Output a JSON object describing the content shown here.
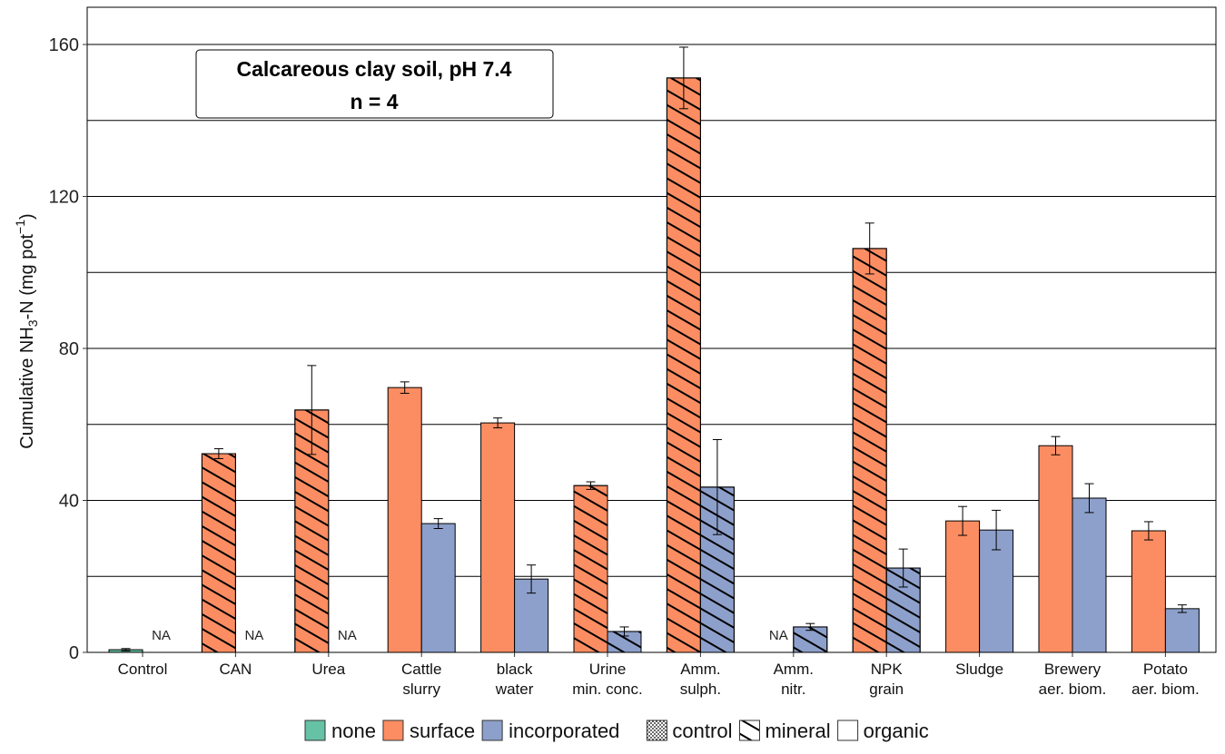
{
  "chart_data": {
    "type": "bar",
    "title_box": [
      "Calcareous clay soil, pH 7.4",
      "n = 4"
    ],
    "ylabel": "Cumulative NH3-N (mg pot-1)",
    "ylabel_parts": {
      "pre": "Cumulative NH",
      "sub": "3",
      "mid": "-N (mg pot",
      "sup": "−1",
      "post": ")"
    },
    "ylim": [
      0,
      169.8
    ],
    "yticks": [
      0,
      40,
      80,
      120,
      160
    ],
    "gridlines": [
      20,
      40,
      60,
      80,
      100,
      120,
      140,
      160
    ],
    "categories": [
      [
        "Control"
      ],
      [
        "CAN"
      ],
      [
        "Urea"
      ],
      [
        "Cattle",
        "slurry"
      ],
      [
        "black",
        "water"
      ],
      [
        "Urine",
        "min. conc."
      ],
      [
        "Amm.",
        "sulph."
      ],
      [
        "Amm.",
        "nitr."
      ],
      [
        "NPK",
        "grain"
      ],
      [
        "Sludge"
      ],
      [
        "Brewery",
        "aer. biom."
      ],
      [
        "Potato",
        "aer. biom."
      ]
    ],
    "fertilizer_type": [
      "control",
      "mineral",
      "mineral",
      "organic",
      "organic",
      "mineral",
      "mineral",
      "mineral",
      "mineral",
      "organic",
      "organic",
      "organic"
    ],
    "na_label": "NA",
    "series": [
      {
        "name": "surface",
        "color": "#FC8D62",
        "values": [
          0.7,
          52.3,
          63.8,
          69.7,
          60.4,
          43.9,
          151.2,
          null,
          106.3,
          34.6,
          54.4,
          32.0
        ],
        "errors": [
          0.3,
          1.3,
          11.7,
          1.5,
          1.3,
          1.0,
          8.1,
          null,
          6.7,
          3.8,
          2.4,
          2.4
        ]
      },
      {
        "name": "incorporated",
        "color": "#8DA0CB",
        "values": [
          null,
          null,
          null,
          33.9,
          19.3,
          5.5,
          43.5,
          6.7,
          22.2,
          32.2,
          40.6,
          11.5
        ],
        "errors": [
          null,
          null,
          null,
          1.3,
          3.7,
          1.2,
          12.5,
          0.9,
          5.0,
          5.2,
          3.8,
          1.0
        ]
      }
    ],
    "none_color": "#66C2A5",
    "legend_application": [
      {
        "label": "none",
        "color": "#66C2A5"
      },
      {
        "label": "surface",
        "color": "#FC8D62"
      },
      {
        "label": "incorporated",
        "color": "#8DA0CB"
      }
    ],
    "legend_type": [
      {
        "label": "control",
        "pattern": "dots"
      },
      {
        "label": "mineral",
        "pattern": "hatch"
      },
      {
        "label": "organic",
        "pattern": "none"
      }
    ],
    "legend_position": "bottom"
  }
}
